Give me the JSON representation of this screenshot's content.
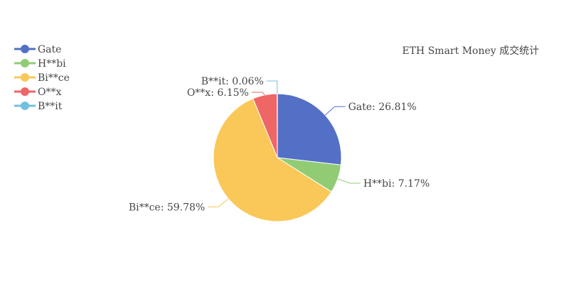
{
  "chart_data": {
    "type": "pie",
    "title": "ETH Smart Money 成交统计",
    "categories": [
      "Gate",
      "H**bi",
      "Bi**ce",
      "O**x",
      "B**it"
    ],
    "values": [
      26.81,
      7.17,
      59.78,
      6.15,
      0.06
    ],
    "value_labels": [
      "Gate: 26.81%",
      "H**bi: 7.17%",
      "Bi**ce: 59.78%",
      "O**x: 6.15%",
      "B**it: 0.06%"
    ],
    "colors": [
      "#5470c6",
      "#91cc75",
      "#fac858",
      "#ee6666",
      "#73c0de"
    ],
    "legend": "top-left"
  }
}
